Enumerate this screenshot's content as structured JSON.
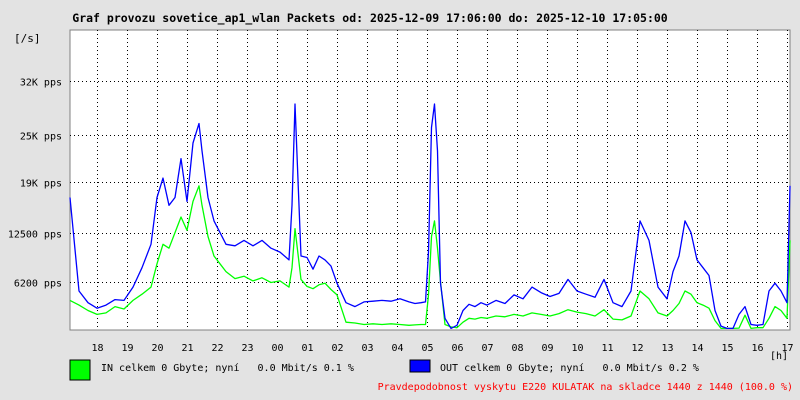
{
  "chart_data": {
    "type": "line",
    "title": "Graf provozu sovetice_ap1_wlan Packets od: 2025-12-09 17:06:00 do: 2025-12-10 17:05:00",
    "ylabel": "[/s]",
    "xlabel": "[h]",
    "ylim": [
      0,
      38500
    ],
    "yticks": [
      {
        "value": 6200,
        "label": "6200 pps"
      },
      {
        "value": 12500,
        "label": "12500 pps"
      },
      {
        "value": 19000,
        "label": "19K pps"
      },
      {
        "value": 25000,
        "label": "25K pps"
      },
      {
        "value": 32000,
        "label": "32K pps"
      }
    ],
    "xlim": [
      17.1,
      41.1
    ],
    "xticks": [
      {
        "value": 18,
        "label": "18"
      },
      {
        "value": 19,
        "label": "19"
      },
      {
        "value": 20,
        "label": "20"
      },
      {
        "value": 21,
        "label": "21"
      },
      {
        "value": 22,
        "label": "22"
      },
      {
        "value": 23,
        "label": "23"
      },
      {
        "value": 24,
        "label": "00"
      },
      {
        "value": 25,
        "label": "01"
      },
      {
        "value": 26,
        "label": "02"
      },
      {
        "value": 27,
        "label": "03"
      },
      {
        "value": 28,
        "label": "04"
      },
      {
        "value": 29,
        "label": "05"
      },
      {
        "value": 30,
        "label": "06"
      },
      {
        "value": 31,
        "label": "07"
      },
      {
        "value": 32,
        "label": "08"
      },
      {
        "value": 33,
        "label": "09"
      },
      {
        "value": 34,
        "label": "10"
      },
      {
        "value": 35,
        "label": "11"
      },
      {
        "value": 36,
        "label": "12"
      },
      {
        "value": 37,
        "label": "13"
      },
      {
        "value": 38,
        "label": "14"
      },
      {
        "value": 39,
        "label": "15"
      },
      {
        "value": 40,
        "label": "16"
      },
      {
        "value": 41,
        "label": "17"
      }
    ],
    "grid": true,
    "series": [
      {
        "name": "IN",
        "color": "#00ff00",
        "x": [
          17.1,
          17.4,
          17.7,
          18.0,
          18.3,
          18.6,
          18.9,
          19.2,
          19.5,
          19.8,
          20.0,
          20.2,
          20.4,
          20.6,
          20.8,
          21.0,
          21.2,
          21.4,
          21.5,
          21.7,
          21.9,
          22.1,
          22.3,
          22.6,
          22.9,
          23.2,
          23.5,
          23.8,
          24.1,
          24.4,
          24.5,
          24.6,
          24.8,
          25.0,
          25.2,
          25.4,
          25.6,
          25.8,
          26.0,
          26.3,
          26.6,
          26.9,
          27.2,
          27.5,
          27.8,
          28.1,
          28.4,
          28.6,
          28.8,
          28.95,
          29.05,
          29.15,
          29.25,
          29.35,
          29.45,
          29.6,
          29.8,
          30.0,
          30.2,
          30.4,
          30.6,
          30.8,
          31.0,
          31.3,
          31.6,
          31.9,
          32.2,
          32.5,
          32.8,
          33.1,
          33.4,
          33.7,
          34.0,
          34.3,
          34.6,
          34.9,
          35.2,
          35.5,
          35.8,
          36.1,
          36.4,
          36.7,
          37.0,
          37.2,
          37.4,
          37.6,
          37.8,
          38.0,
          38.2,
          38.4,
          38.6,
          38.8,
          39.0,
          39.2,
          39.4,
          39.6,
          39.8,
          40.0,
          40.2,
          40.4,
          40.6,
          40.8,
          41.0,
          41.1
        ],
        "y": [
          3800,
          3200,
          2500,
          2000,
          2200,
          3000,
          2700,
          3800,
          4600,
          5500,
          8500,
          11000,
          10500,
          12500,
          14500,
          12800,
          16500,
          18500,
          16000,
          12000,
          9500,
          8500,
          7500,
          6600,
          6900,
          6300,
          6700,
          6100,
          6300,
          5500,
          8000,
          13000,
          6500,
          5600,
          5300,
          5800,
          6000,
          5200,
          4500,
          1000,
          900,
          700,
          800,
          700,
          800,
          700,
          600,
          650,
          700,
          700,
          4500,
          12000,
          14000,
          10500,
          6200,
          700,
          400,
          300,
          1000,
          1500,
          1400,
          1600,
          1500,
          1800,
          1700,
          2000,
          1800,
          2200,
          2000,
          1800,
          2100,
          2600,
          2300,
          2100,
          1800,
          2600,
          1400,
          1300,
          1800,
          5000,
          4000,
          2200,
          1800,
          2500,
          3400,
          5000,
          4600,
          3500,
          3200,
          2800,
          1200,
          200,
          200,
          200,
          250,
          1900,
          200,
          300,
          300,
          1500,
          3000,
          2500,
          1500,
          11500
        ]
      },
      {
        "name": "OUT",
        "color": "#0000ff",
        "x": [
          17.1,
          17.4,
          17.7,
          18.0,
          18.3,
          18.6,
          18.9,
          19.2,
          19.5,
          19.8,
          20.0,
          20.2,
          20.4,
          20.6,
          20.8,
          21.0,
          21.2,
          21.4,
          21.5,
          21.7,
          21.9,
          22.1,
          22.3,
          22.6,
          22.9,
          23.2,
          23.5,
          23.8,
          24.1,
          24.4,
          24.5,
          24.6,
          24.8,
          25.0,
          25.2,
          25.4,
          25.6,
          25.8,
          26.0,
          26.3,
          26.6,
          26.9,
          27.2,
          27.5,
          27.8,
          28.1,
          28.4,
          28.6,
          28.8,
          28.95,
          29.05,
          29.15,
          29.25,
          29.35,
          29.45,
          29.6,
          29.8,
          30.0,
          30.2,
          30.4,
          30.6,
          30.8,
          31.0,
          31.3,
          31.6,
          31.9,
          32.2,
          32.5,
          32.8,
          33.1,
          33.4,
          33.7,
          34.0,
          34.3,
          34.6,
          34.9,
          35.2,
          35.5,
          35.8,
          36.1,
          36.4,
          36.7,
          37.0,
          37.2,
          37.4,
          37.6,
          37.8,
          38.0,
          38.2,
          38.4,
          38.6,
          38.8,
          39.0,
          39.2,
          39.4,
          39.6,
          39.8,
          40.0,
          40.2,
          40.4,
          40.6,
          40.8,
          41.0,
          41.1
        ],
        "y": [
          17000,
          5000,
          3500,
          2800,
          3200,
          3900,
          3800,
          5500,
          8000,
          11000,
          17000,
          19500,
          16000,
          17000,
          22000,
          16500,
          24000,
          26500,
          23000,
          17000,
          14000,
          12500,
          11000,
          10800,
          11500,
          10800,
          11500,
          10500,
          10000,
          9000,
          16000,
          29000,
          9500,
          9300,
          7800,
          9500,
          9000,
          8200,
          6000,
          3500,
          3000,
          3600,
          3700,
          3800,
          3700,
          4000,
          3600,
          3400,
          3500,
          3600,
          10000,
          26000,
          29000,
          23000,
          6000,
          1500,
          200,
          600,
          2500,
          3300,
          3000,
          3500,
          3200,
          3800,
          3400,
          4500,
          4000,
          5500,
          4800,
          4300,
          4700,
          6500,
          5000,
          4600,
          4200,
          6500,
          3500,
          3000,
          5000,
          14000,
          11500,
          5500,
          4000,
          7500,
          9500,
          14000,
          12500,
          9000,
          8000,
          7000,
          2500,
          500,
          200,
          200,
          2000,
          3000,
          700,
          600,
          700,
          5000,
          6000,
          5000,
          3500,
          18500
        ]
      }
    ]
  },
  "legend": {
    "in_color": "#00ff00",
    "out_color": "#0000ff",
    "in_text": "IN celkem 0 Gbyte; nyní   0.0 Mbit/s 0.1 %",
    "out_text": "OUT celkem 0 Gbyte; nyní   0.0 Mbit/s 0.2 %"
  },
  "footer": {
    "note": "Pravdepodobnost vyskytu E220 KULATAK na skladce 1440 z 1440 (100.0 %)",
    "note_color": "#ff0000"
  }
}
